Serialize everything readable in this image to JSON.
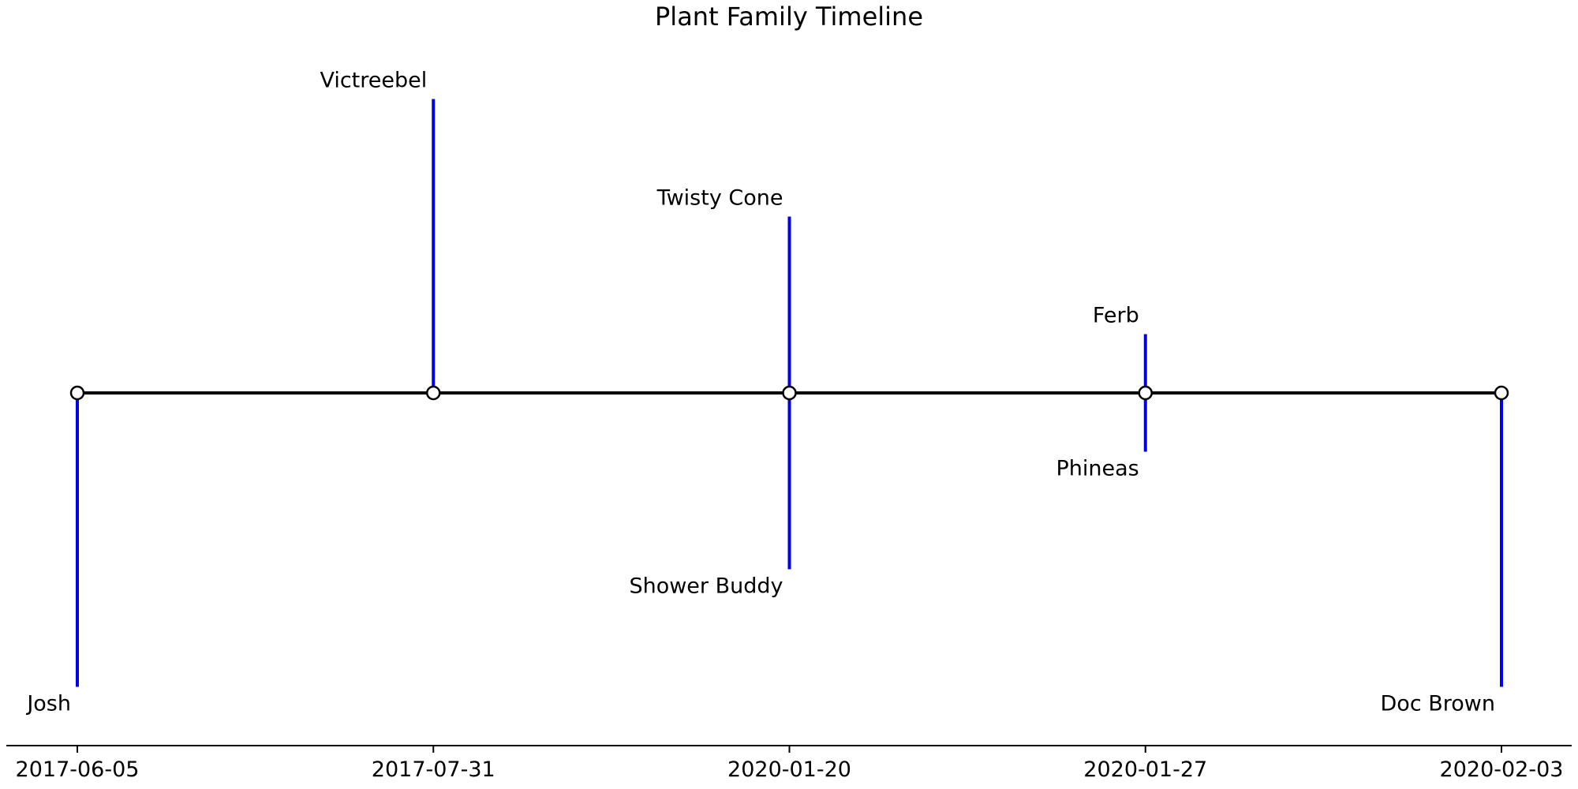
{
  "chart_data": {
    "type": "timeline",
    "title": "Plant Family Timeline",
    "xlabel": "",
    "ylabel": "",
    "grid": false,
    "legend": "none",
    "x_ticks": [
      "2017-06-05",
      "2017-07-31",
      "2020-01-20",
      "2020-01-27",
      "2020-02-03"
    ],
    "events": [
      {
        "label": "Victreebel",
        "tick": "2017-07-31",
        "level": 5
      },
      {
        "label": "Twisty Cone",
        "tick": "2020-01-20",
        "level": 3
      },
      {
        "label": "Ferb",
        "tick": "2020-01-27",
        "level": 1
      },
      {
        "label": "Phineas",
        "tick": "2020-01-27",
        "level": -1
      },
      {
        "label": "Shower Buddy",
        "tick": "2020-01-20",
        "level": -3
      },
      {
        "label": "Josh",
        "tick": "2017-06-05",
        "level": -5
      },
      {
        "label": "Doc Brown",
        "tick": "2020-02-03",
        "level": -5
      }
    ],
    "ylim": [
      -6,
      6
    ],
    "colors": {
      "stem": "#0000ee",
      "baseline": "#000000",
      "marker_fill": "#ffffff",
      "marker_edge": "#000000",
      "axis": "#000000"
    }
  }
}
